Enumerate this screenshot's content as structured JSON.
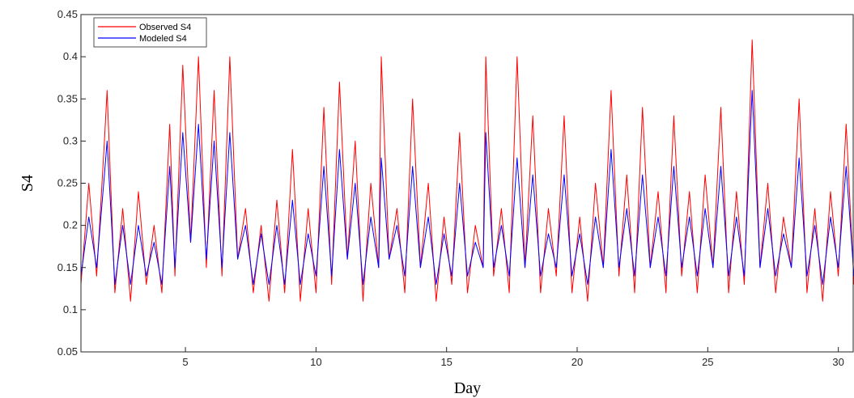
{
  "chart_data": {
    "type": "line",
    "title": "",
    "xlabel": "Day",
    "ylabel": "S4",
    "xlim": [
      1,
      30.6
    ],
    "ylim": [
      0.05,
      0.45
    ],
    "xticks": [
      "5",
      "10",
      "15",
      "20",
      "25",
      "30"
    ],
    "yticks": [
      "0.05",
      "0.1",
      "0.15",
      "0.2",
      "0.25",
      "0.3",
      "0.35",
      "0.4",
      "0.45"
    ],
    "grid": false,
    "legend_position": "top-left",
    "series": [
      {
        "name": "Observed S4",
        "color": "#ff0000",
        "x": [
          1.0,
          1.3,
          1.6,
          1.9,
          2.0,
          2.3,
          2.6,
          2.9,
          3.2,
          3.5,
          3.8,
          4.1,
          4.4,
          4.6,
          4.9,
          5.2,
          5.5,
          5.8,
          6.1,
          6.4,
          6.7,
          7.0,
          7.3,
          7.6,
          7.9,
          8.2,
          8.5,
          8.8,
          9.1,
          9.4,
          9.7,
          10.0,
          10.3,
          10.6,
          10.9,
          11.2,
          11.5,
          11.8,
          12.1,
          12.4,
          12.5,
          12.8,
          13.1,
          13.4,
          13.7,
          14.0,
          14.3,
          14.6,
          14.9,
          15.2,
          15.5,
          15.8,
          16.1,
          16.4,
          16.5,
          16.8,
          17.1,
          17.4,
          17.7,
          18.0,
          18.3,
          18.6,
          18.9,
          19.2,
          19.5,
          19.8,
          20.1,
          20.4,
          20.7,
          21.0,
          21.3,
          21.6,
          21.9,
          22.2,
          22.5,
          22.8,
          23.1,
          23.4,
          23.7,
          24.0,
          24.3,
          24.6,
          24.9,
          25.2,
          25.5,
          25.8,
          26.1,
          26.4,
          26.7,
          27.0,
          27.3,
          27.6,
          27.9,
          28.2,
          28.5,
          28.8,
          29.1,
          29.4,
          29.7,
          30.0,
          30.3,
          30.6
        ],
        "y": [
          0.13,
          0.25,
          0.14,
          0.3,
          0.36,
          0.12,
          0.22,
          0.11,
          0.24,
          0.13,
          0.2,
          0.12,
          0.32,
          0.14,
          0.39,
          0.18,
          0.4,
          0.15,
          0.36,
          0.14,
          0.4,
          0.16,
          0.22,
          0.12,
          0.2,
          0.11,
          0.23,
          0.12,
          0.29,
          0.11,
          0.22,
          0.12,
          0.34,
          0.13,
          0.37,
          0.16,
          0.3,
          0.11,
          0.25,
          0.15,
          0.4,
          0.16,
          0.22,
          0.12,
          0.35,
          0.15,
          0.25,
          0.11,
          0.21,
          0.13,
          0.31,
          0.12,
          0.2,
          0.15,
          0.4,
          0.14,
          0.22,
          0.12,
          0.4,
          0.15,
          0.33,
          0.12,
          0.22,
          0.14,
          0.33,
          0.12,
          0.21,
          0.11,
          0.25,
          0.15,
          0.36,
          0.14,
          0.26,
          0.12,
          0.34,
          0.15,
          0.24,
          0.12,
          0.33,
          0.14,
          0.24,
          0.12,
          0.26,
          0.15,
          0.34,
          0.12,
          0.24,
          0.13,
          0.42,
          0.15,
          0.25,
          0.12,
          0.21,
          0.15,
          0.35,
          0.12,
          0.22,
          0.11,
          0.24,
          0.14,
          0.32,
          0.13
        ]
      },
      {
        "name": "Modeled S4",
        "color": "#0000ff",
        "x": [
          1.0,
          1.3,
          1.6,
          1.9,
          2.0,
          2.3,
          2.6,
          2.9,
          3.2,
          3.5,
          3.8,
          4.1,
          4.4,
          4.6,
          4.9,
          5.2,
          5.5,
          5.8,
          6.1,
          6.4,
          6.7,
          7.0,
          7.3,
          7.6,
          7.9,
          8.2,
          8.5,
          8.8,
          9.1,
          9.4,
          9.7,
          10.0,
          10.3,
          10.6,
          10.9,
          11.2,
          11.5,
          11.8,
          12.1,
          12.4,
          12.5,
          12.8,
          13.1,
          13.4,
          13.7,
          14.0,
          14.3,
          14.6,
          14.9,
          15.2,
          15.5,
          15.8,
          16.1,
          16.4,
          16.5,
          16.8,
          17.1,
          17.4,
          17.7,
          18.0,
          18.3,
          18.6,
          18.9,
          19.2,
          19.5,
          19.8,
          20.1,
          20.4,
          20.7,
          21.0,
          21.3,
          21.6,
          21.9,
          22.2,
          22.5,
          22.8,
          23.1,
          23.4,
          23.7,
          24.0,
          24.3,
          24.6,
          24.9,
          25.2,
          25.5,
          25.8,
          26.1,
          26.4,
          26.7,
          27.0,
          27.3,
          27.6,
          27.9,
          28.2,
          28.5,
          28.8,
          29.1,
          29.4,
          29.7,
          30.0,
          30.3,
          30.6
        ],
        "y": [
          0.14,
          0.21,
          0.15,
          0.26,
          0.3,
          0.13,
          0.2,
          0.13,
          0.2,
          0.14,
          0.18,
          0.13,
          0.27,
          0.15,
          0.31,
          0.18,
          0.32,
          0.16,
          0.3,
          0.15,
          0.31,
          0.16,
          0.2,
          0.13,
          0.19,
          0.13,
          0.2,
          0.13,
          0.23,
          0.13,
          0.19,
          0.14,
          0.27,
          0.14,
          0.29,
          0.16,
          0.25,
          0.13,
          0.21,
          0.15,
          0.28,
          0.16,
          0.2,
          0.14,
          0.27,
          0.15,
          0.21,
          0.13,
          0.19,
          0.14,
          0.25,
          0.14,
          0.18,
          0.15,
          0.31,
          0.15,
          0.2,
          0.14,
          0.28,
          0.15,
          0.26,
          0.14,
          0.19,
          0.15,
          0.26,
          0.14,
          0.19,
          0.13,
          0.21,
          0.15,
          0.29,
          0.15,
          0.22,
          0.14,
          0.26,
          0.15,
          0.21,
          0.14,
          0.27,
          0.15,
          0.21,
          0.14,
          0.22,
          0.15,
          0.27,
          0.14,
          0.21,
          0.14,
          0.36,
          0.15,
          0.22,
          0.14,
          0.19,
          0.15,
          0.28,
          0.14,
          0.2,
          0.13,
          0.21,
          0.15,
          0.27,
          0.14
        ]
      }
    ]
  }
}
